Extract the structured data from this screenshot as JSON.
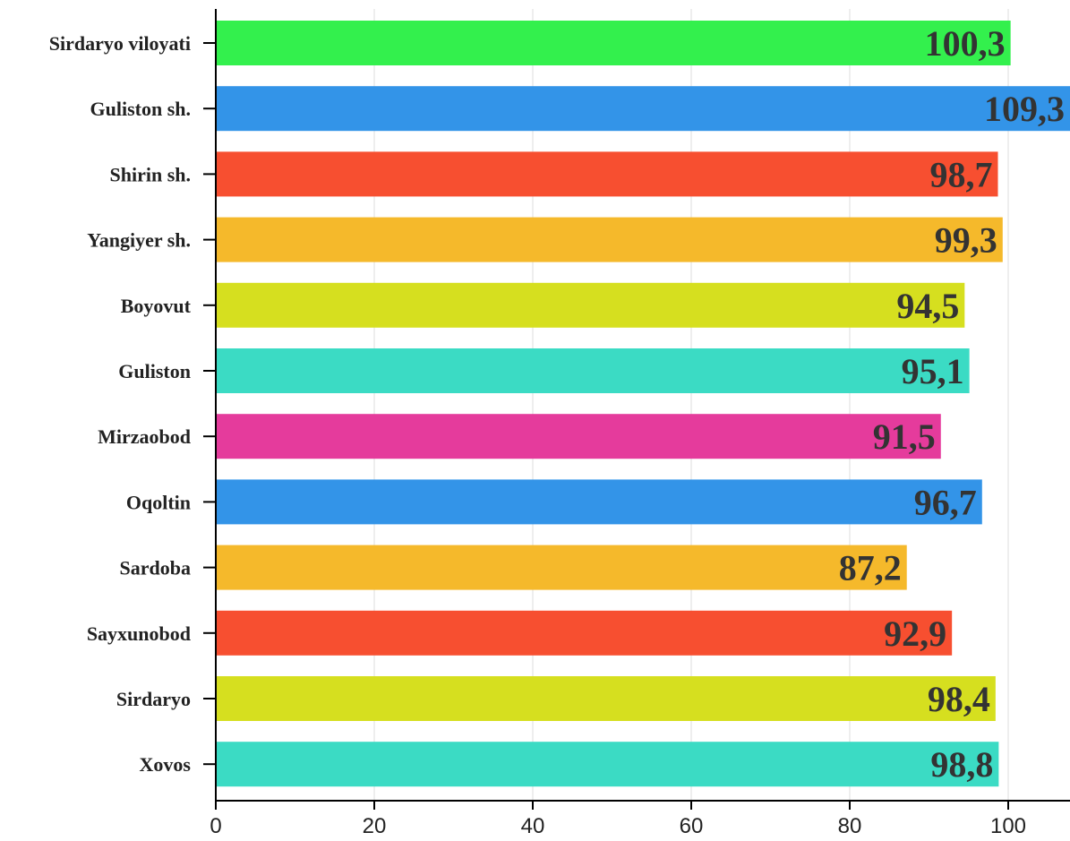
{
  "chart_data": {
    "type": "bar",
    "orientation": "horizontal",
    "categories": [
      "Sirdaryo viloyati",
      "Guliston sh.",
      "Shirin sh.",
      "Yangiyer sh.",
      "Boyovut",
      "Guliston",
      "Mirzaobod",
      "Oqoltin",
      "Sardoba",
      "Sayxunobod",
      "Sirdaryo",
      "Xovos"
    ],
    "values": [
      100.3,
      109.3,
      98.7,
      99.3,
      94.5,
      95.1,
      91.5,
      96.7,
      87.2,
      92.9,
      98.4,
      98.8
    ],
    "value_labels": [
      "100,3",
      "109,3",
      "98,7",
      "99,3",
      "94,5",
      "95,1",
      "91,5",
      "96,7",
      "87,2",
      "92,9",
      "98,4",
      "98,8"
    ],
    "colors": [
      "#33f04d",
      "#3394e8",
      "#f74f30",
      "#f5b92b",
      "#d6df1f",
      "#3bdbc4",
      "#e53b9c",
      "#3394e8",
      "#f5b92b",
      "#f74f30",
      "#d6df1f",
      "#3bdbc4"
    ],
    "x_ticks": [
      "0",
      "20",
      "40",
      "60",
      "80",
      "100"
    ],
    "xlim": [
      0,
      108
    ],
    "grid": true,
    "title": "",
    "xlabel": "",
    "ylabel": ""
  }
}
